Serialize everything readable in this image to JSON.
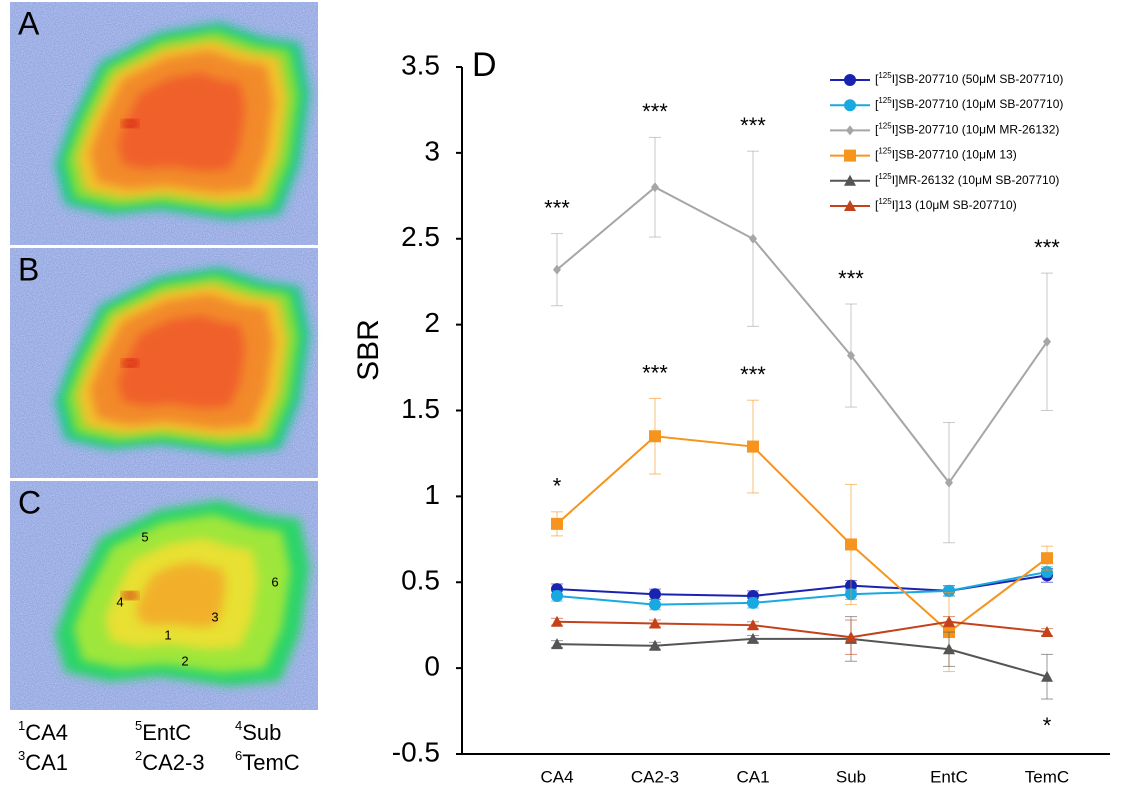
{
  "panels": [
    "A",
    "B",
    "C"
  ],
  "regions": [
    {
      "number": "1",
      "name": "CA4"
    },
    {
      "number": "2",
      "name": "CA2-3"
    },
    {
      "number": "3",
      "name": "CA1"
    },
    {
      "number": "4",
      "name": "Sub"
    },
    {
      "number": "5",
      "name": "EntC"
    },
    {
      "number": "6",
      "name": "TemC"
    }
  ],
  "chart_data": {
    "type": "line",
    "panel_label": "D",
    "ylabel": "SBR",
    "categories": [
      "CA4",
      "CA2-3",
      "CA1",
      "Sub",
      "EntC",
      "TemC"
    ],
    "ylim": [
      -0.5,
      3.5
    ],
    "yticks": [
      -0.5,
      0,
      0.5,
      1,
      1.5,
      2,
      2.5,
      3,
      3.5
    ],
    "legend": "upper right",
    "series": [
      {
        "name": "[125I]SB-207710 (50μM SB-207710)",
        "color": "#1a23b0",
        "marker": "circle",
        "values": [
          0.46,
          0.43,
          0.42,
          0.48,
          0.45,
          0.54
        ],
        "errors": [
          0.03,
          0.03,
          0.03,
          0.03,
          0.03,
          0.04
        ]
      },
      {
        "name": "[125I]SB-207710 (10μM SB-207710)",
        "color": "#19a9e1",
        "marker": "circle",
        "values": [
          0.42,
          0.37,
          0.38,
          0.43,
          0.45,
          0.56
        ],
        "errors": [
          0.03,
          0.03,
          0.03,
          0.03,
          0.03,
          0.03
        ]
      },
      {
        "name": "[125I]SB-207710 (10μM MR-26132)",
        "color": "#a6a6a6",
        "marker": "diamond",
        "values": [
          2.32,
          2.8,
          2.5,
          1.82,
          1.08,
          1.9
        ],
        "errors": [
          0.21,
          0.29,
          0.51,
          0.3,
          0.35,
          0.4
        ],
        "annotations": [
          "***",
          "***",
          "***",
          "***",
          null,
          "***"
        ]
      },
      {
        "name": "[125I]SB-207710 (10μM 13)",
        "color": "#f7941d",
        "marker": "square",
        "values": [
          0.84,
          1.35,
          1.29,
          0.72,
          0.21,
          0.64
        ],
        "errors": [
          0.07,
          0.22,
          0.27,
          0.35,
          0.23,
          0.07
        ],
        "annotations": [
          "*",
          "***",
          "***",
          null,
          null,
          null
        ]
      },
      {
        "name": "[125I]MR-26132 (10μM SB-207710)",
        "color": "#555555",
        "marker": "triangle",
        "values": [
          0.14,
          0.13,
          0.17,
          0.17,
          0.11,
          -0.05
        ],
        "errors": [
          0.02,
          0.02,
          0.02,
          0.13,
          0.1,
          0.13
        ],
        "annotations": [
          null,
          null,
          null,
          null,
          null,
          "*"
        ],
        "annotation_side": "below"
      },
      {
        "name": "[125I]13 (10μM SB-207710)",
        "color": "#c4421a",
        "marker": "triangle",
        "values": [
          0.27,
          0.26,
          0.25,
          0.18,
          0.27,
          0.21
        ],
        "errors": [
          0.02,
          0.02,
          0.02,
          0.1,
          0.03,
          0.02
        ]
      }
    ]
  }
}
